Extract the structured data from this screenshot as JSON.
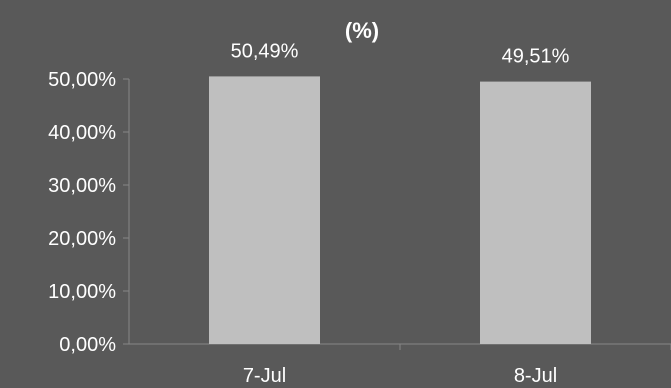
{
  "chart_data": {
    "type": "bar",
    "title": "(%)",
    "categories": [
      "7-Jul",
      "8-Jul"
    ],
    "values": [
      50.49,
      49.51
    ],
    "data_labels": [
      "50,49%",
      "49,51%"
    ],
    "y_ticks": [
      0,
      10,
      20,
      30,
      40,
      50
    ],
    "y_tick_labels": [
      "0,00%",
      "10,00%",
      "20,00%",
      "30,00%",
      "40,00%",
      "50,00%"
    ],
    "ylim": [
      0,
      50
    ],
    "xlabel": "",
    "ylabel": "",
    "grid": false,
    "legend": "none",
    "bar_color": "#bfbfbf",
    "axis_color": "#868686",
    "background_color": "#595959",
    "text_color": "#ffffff"
  }
}
